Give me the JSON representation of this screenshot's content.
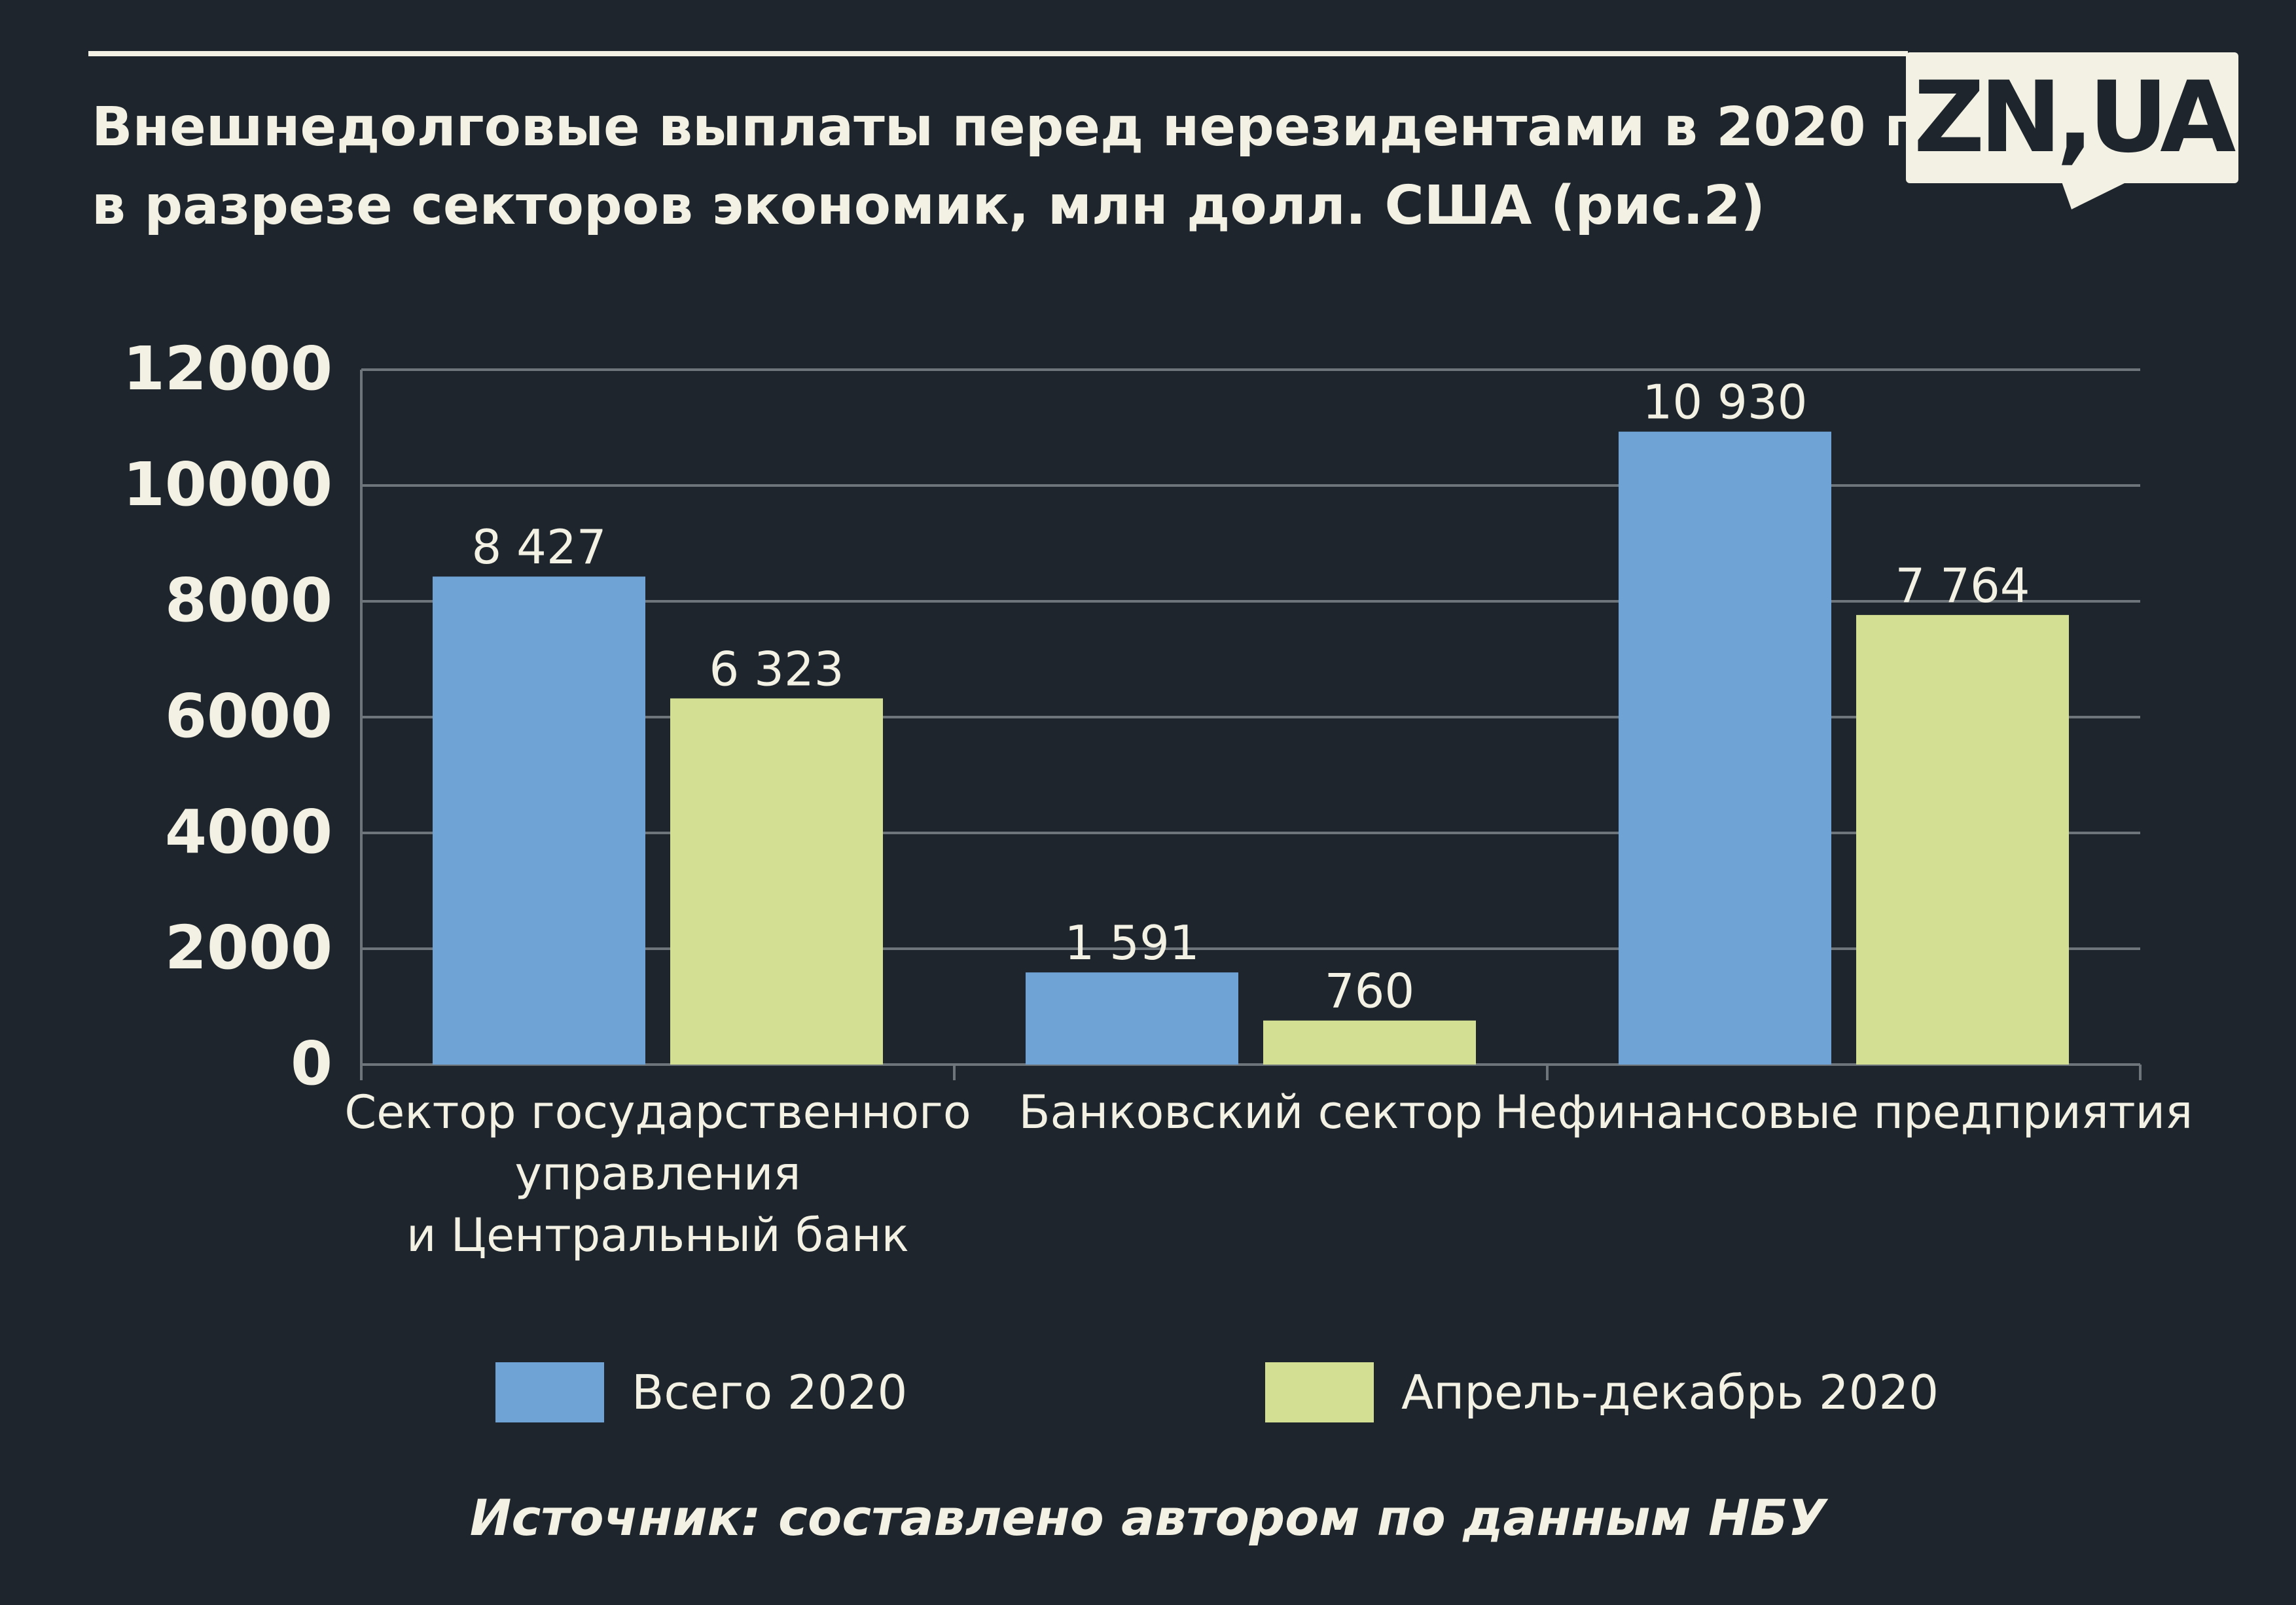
{
  "title_lines": [
    "Внешнедолговые выплаты перед нерезидентами в 2020 г.",
    "в разрезе секторов экономик, млн долл. США (рис.2)"
  ],
  "logo": {
    "text": "ZN,UA",
    "background": "#f3f1e3",
    "color": "#1e252c"
  },
  "source": "Источник: составлено автором по данным НБУ",
  "colors": {
    "background": "#1e252c",
    "text": "#f3f1e3",
    "grid": "#6f767b",
    "series_total": "#6fa3d6",
    "series_apr_dec": "#d3e093"
  },
  "chart_data": {
    "type": "bar",
    "title": "Внешнедолговые выплаты перед нерезидентами в 2020 г. в разрезе секторов экономик, млн долл. США (рис.2)",
    "categories": [
      [
        "Сектор государственного",
        "управления",
        "и Центральный банк"
      ],
      [
        "Банковский сектор"
      ],
      [
        "Нефинансовые предприятия"
      ]
    ],
    "series": [
      {
        "name": "Всего 2020",
        "values": [
          8427,
          1591,
          10930
        ],
        "labels": [
          "8 427",
          "1 591",
          "10 930"
        ],
        "color": "#6fa3d6"
      },
      {
        "name": "Апрель-декабрь 2020",
        "values": [
          6323,
          760,
          7764
        ],
        "labels": [
          "6 323",
          "760",
          "7 764"
        ],
        "color": "#d3e093"
      }
    ],
    "ylim": [
      0,
      12000
    ],
    "yticks": [
      0,
      2000,
      4000,
      6000,
      8000,
      10000,
      12000
    ],
    "ytick_labels": [
      "0",
      "2000",
      "4000",
      "6000",
      "8000",
      "10000",
      "12000"
    ],
    "grid": true,
    "legend_position": "bottom"
  }
}
